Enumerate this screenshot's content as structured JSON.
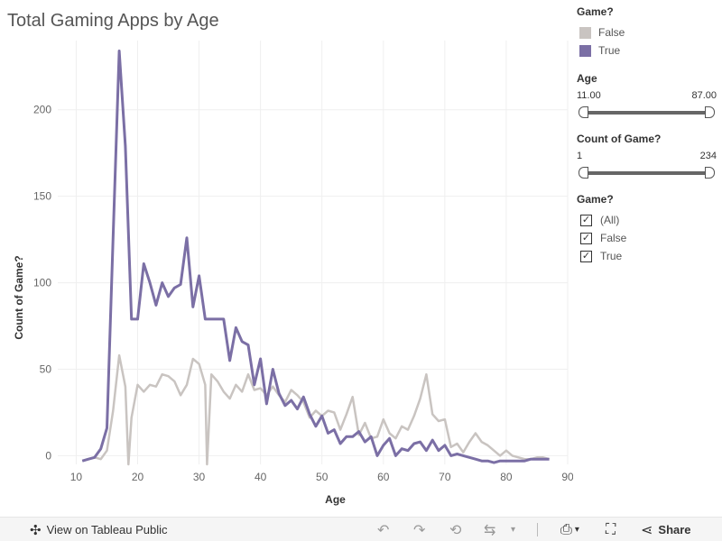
{
  "chart_data": {
    "type": "line",
    "title": "Total Gaming Apps by Age",
    "xlabel": "Age",
    "ylabel": "Count of Game?",
    "xlim": [
      7,
      90
    ],
    "ylim": [
      -5,
      240
    ],
    "x_ticks": [
      10,
      20,
      30,
      40,
      50,
      60,
      70,
      80,
      90
    ],
    "y_ticks": [
      0,
      50,
      100,
      150,
      200
    ],
    "grid": true,
    "series": [
      {
        "name": "False",
        "color": "#c9c4c1",
        "points": [
          [
            11,
            -3
          ],
          [
            12,
            -2
          ],
          [
            13,
            -1
          ],
          [
            14,
            -2
          ],
          [
            15,
            3
          ],
          [
            16,
            26
          ],
          [
            17,
            58
          ],
          [
            18,
            40
          ],
          [
            18.5,
            -5
          ],
          [
            19,
            22
          ],
          [
            20,
            41
          ],
          [
            21,
            37
          ],
          [
            22,
            41
          ],
          [
            23,
            40
          ],
          [
            24,
            47
          ],
          [
            25,
            46
          ],
          [
            26,
            43
          ],
          [
            27,
            35
          ],
          [
            28,
            41
          ],
          [
            29,
            56
          ],
          [
            30,
            53
          ],
          [
            31,
            41
          ],
          [
            31.3,
            -5
          ],
          [
            32,
            47
          ],
          [
            33,
            43
          ],
          [
            34,
            37
          ],
          [
            35,
            33
          ],
          [
            36,
            41
          ],
          [
            37,
            37
          ],
          [
            38,
            47
          ],
          [
            39,
            38
          ],
          [
            40,
            39
          ],
          [
            41,
            35
          ],
          [
            42,
            40
          ],
          [
            43,
            35
          ],
          [
            44,
            31
          ],
          [
            45,
            38
          ],
          [
            46,
            35
          ],
          [
            47,
            31
          ],
          [
            48,
            22
          ],
          [
            49,
            26
          ],
          [
            50,
            23
          ],
          [
            51,
            26
          ],
          [
            52,
            25
          ],
          [
            53,
            15
          ],
          [
            54,
            24
          ],
          [
            55,
            34
          ],
          [
            56,
            12
          ],
          [
            57,
            19
          ],
          [
            58,
            10
          ],
          [
            59,
            11
          ],
          [
            60,
            21
          ],
          [
            61,
            13
          ],
          [
            62,
            10
          ],
          [
            63,
            17
          ],
          [
            64,
            15
          ],
          [
            65,
            23
          ],
          [
            66,
            33
          ],
          [
            67,
            47
          ],
          [
            68,
            24
          ],
          [
            69,
            20
          ],
          [
            70,
            21
          ],
          [
            71,
            5
          ],
          [
            72,
            7
          ],
          [
            73,
            2
          ],
          [
            74,
            8
          ],
          [
            75,
            13
          ],
          [
            76,
            8
          ],
          [
            77,
            6
          ],
          [
            78,
            3
          ],
          [
            79,
            0
          ],
          [
            80,
            3
          ],
          [
            81,
            0
          ],
          [
            82,
            -1
          ],
          [
            83,
            -2
          ],
          [
            84,
            -2
          ],
          [
            85,
            -1
          ],
          [
            86,
            -1
          ],
          [
            87,
            -2
          ]
        ]
      },
      {
        "name": "True",
        "color": "#7b6fa5",
        "points": [
          [
            11,
            -3
          ],
          [
            12,
            -2
          ],
          [
            13,
            -1
          ],
          [
            14,
            4
          ],
          [
            15,
            16
          ],
          [
            16,
            126
          ],
          [
            17,
            234
          ],
          [
            18,
            179
          ],
          [
            19,
            79
          ],
          [
            20,
            79
          ],
          [
            21,
            111
          ],
          [
            22,
            100
          ],
          [
            23,
            87
          ],
          [
            24,
            100
          ],
          [
            25,
            92
          ],
          [
            26,
            97
          ],
          [
            27,
            99
          ],
          [
            28,
            126
          ],
          [
            29,
            86
          ],
          [
            30,
            104
          ],
          [
            31,
            79
          ],
          [
            32,
            79
          ],
          [
            33,
            79
          ],
          [
            34,
            79
          ],
          [
            35,
            55
          ],
          [
            36,
            74
          ],
          [
            37,
            66
          ],
          [
            38,
            64
          ],
          [
            39,
            41
          ],
          [
            40,
            56
          ],
          [
            41,
            30
          ],
          [
            42,
            50
          ],
          [
            43,
            36
          ],
          [
            44,
            29
          ],
          [
            45,
            32
          ],
          [
            46,
            27
          ],
          [
            47,
            34
          ],
          [
            48,
            24
          ],
          [
            49,
            17
          ],
          [
            50,
            23
          ],
          [
            51,
            13
          ],
          [
            52,
            15
          ],
          [
            53,
            7
          ],
          [
            54,
            11
          ],
          [
            55,
            11
          ],
          [
            56,
            14
          ],
          [
            57,
            8
          ],
          [
            58,
            11
          ],
          [
            59,
            0
          ],
          [
            60,
            6
          ],
          [
            61,
            10
          ],
          [
            62,
            0
          ],
          [
            63,
            4
          ],
          [
            64,
            3
          ],
          [
            65,
            7
          ],
          [
            66,
            8
          ],
          [
            67,
            3
          ],
          [
            68,
            9
          ],
          [
            69,
            3
          ],
          [
            70,
            6
          ],
          [
            71,
            0
          ],
          [
            72,
            1
          ],
          [
            73,
            0
          ],
          [
            74,
            -1
          ],
          [
            75,
            -2
          ],
          [
            76,
            -3
          ],
          [
            77,
            -3
          ],
          [
            78,
            -4
          ],
          [
            79,
            -3
          ],
          [
            80,
            -3
          ],
          [
            81,
            -3
          ],
          [
            82,
            -3
          ],
          [
            83,
            -3
          ],
          [
            84,
            -2
          ],
          [
            85,
            -2
          ],
          [
            86,
            -2
          ],
          [
            87,
            -2
          ]
        ]
      }
    ]
  },
  "legend": {
    "title": "Game?",
    "items": [
      {
        "label": "False",
        "color": "#c9c4c1"
      },
      {
        "label": "True",
        "color": "#7b6fa5"
      }
    ]
  },
  "age_filter": {
    "title": "Age",
    "min": "11.00",
    "max": "87.00"
  },
  "count_filter": {
    "title": "Count of Game?",
    "min": "1",
    "max": "234"
  },
  "game_filter": {
    "title": "Game?",
    "options": [
      {
        "label": "(All)",
        "checked": true
      },
      {
        "label": "False",
        "checked": true
      },
      {
        "label": "True",
        "checked": true
      }
    ]
  },
  "footer": {
    "view_label": "View on Tableau Public",
    "share_label": "Share",
    "icons": [
      "tableau-logo-icon",
      "undo-icon",
      "redo-icon",
      "revert-icon",
      "refresh-icon",
      "chevron-down-icon",
      "download-icon",
      "fullscreen-icon",
      "share-icon"
    ]
  }
}
